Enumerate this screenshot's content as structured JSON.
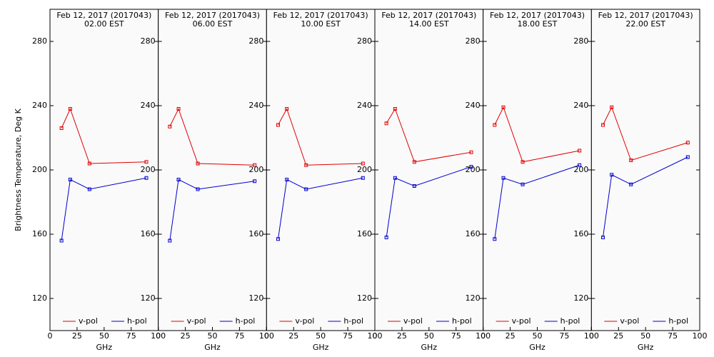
{
  "chart_data": [
    {
      "type": "line",
      "title": "Feb 12, 2017 (2017043)",
      "subtitle": "02.00 EST",
      "xlabel": "GHz",
      "ylabel": "Brightness Temperature, Deg K",
      "x": [
        10.65,
        18.7,
        36.5,
        89.0
      ],
      "xlim": [
        0,
        100
      ],
      "xticks": [
        0,
        25,
        50,
        75,
        100
      ],
      "ylim": [
        100,
        300
      ],
      "yticks": [
        120,
        160,
        200,
        240,
        280
      ],
      "series": [
        {
          "name": "v-pol",
          "color": "#e00000",
          "values": [
            226,
            238,
            204,
            205
          ]
        },
        {
          "name": "h-pol",
          "color": "#0000d0",
          "values": [
            156,
            194,
            188,
            195
          ]
        }
      ]
    },
    {
      "type": "line",
      "title": "Feb 12, 2017 (2017043)",
      "subtitle": "06.00 EST",
      "xlabel": "GHz",
      "x": [
        10.65,
        18.7,
        36.5,
        89.0
      ],
      "xlim": [
        0,
        100
      ],
      "xticks": [
        0,
        25,
        50,
        75,
        100
      ],
      "ylim": [
        100,
        300
      ],
      "yticks": [
        120,
        160,
        200,
        240,
        280
      ],
      "series": [
        {
          "name": "v-pol",
          "color": "#e00000",
          "values": [
            227,
            238,
            204,
            203
          ]
        },
        {
          "name": "h-pol",
          "color": "#0000d0",
          "values": [
            156,
            194,
            188,
            193
          ]
        }
      ]
    },
    {
      "type": "line",
      "title": "Feb 12, 2017 (2017043)",
      "subtitle": "10.00 EST",
      "xlabel": "GHz",
      "x": [
        10.65,
        18.7,
        36.5,
        89.0
      ],
      "xlim": [
        0,
        100
      ],
      "xticks": [
        0,
        25,
        50,
        75,
        100
      ],
      "ylim": [
        100,
        300
      ],
      "yticks": [
        120,
        160,
        200,
        240,
        280
      ],
      "series": [
        {
          "name": "v-pol",
          "color": "#e00000",
          "values": [
            228,
            238,
            203,
            204
          ]
        },
        {
          "name": "h-pol",
          "color": "#0000d0",
          "values": [
            157,
            194,
            188,
            195
          ]
        }
      ]
    },
    {
      "type": "line",
      "title": "Feb 12, 2017 (2017043)",
      "subtitle": "14.00 EST",
      "xlabel": "GHz",
      "x": [
        10.65,
        18.7,
        36.5,
        89.0
      ],
      "xlim": [
        0,
        100
      ],
      "xticks": [
        0,
        25,
        50,
        75,
        100
      ],
      "ylim": [
        100,
        300
      ],
      "yticks": [
        120,
        160,
        200,
        240,
        280
      ],
      "series": [
        {
          "name": "v-pol",
          "color": "#e00000",
          "values": [
            229,
            238,
            205,
            211
          ]
        },
        {
          "name": "h-pol",
          "color": "#0000d0",
          "values": [
            158,
            195,
            190,
            202
          ]
        }
      ]
    },
    {
      "type": "line",
      "title": "Feb 12, 2017 (2017043)",
      "subtitle": "18.00 EST",
      "xlabel": "GHz",
      "x": [
        10.65,
        18.7,
        36.5,
        89.0
      ],
      "xlim": [
        0,
        100
      ],
      "xticks": [
        0,
        25,
        50,
        75,
        100
      ],
      "ylim": [
        100,
        300
      ],
      "yticks": [
        120,
        160,
        200,
        240,
        280
      ],
      "series": [
        {
          "name": "v-pol",
          "color": "#e00000",
          "values": [
            228,
            239,
            205,
            212
          ]
        },
        {
          "name": "h-pol",
          "color": "#0000d0",
          "values": [
            157,
            195,
            191,
            203
          ]
        }
      ]
    },
    {
      "type": "line",
      "title": "Feb 12, 2017 (2017043)",
      "subtitle": "22.00 EST",
      "xlabel": "GHz",
      "x": [
        10.65,
        18.7,
        36.5,
        89.0
      ],
      "xlim": [
        0,
        100
      ],
      "xticks": [
        0,
        25,
        50,
        75,
        100
      ],
      "ylim": [
        100,
        300
      ],
      "yticks": [
        120,
        160,
        200,
        240,
        280
      ],
      "series": [
        {
          "name": "v-pol",
          "color": "#e00000",
          "values": [
            228,
            239,
            206,
            217
          ]
        },
        {
          "name": "h-pol",
          "color": "#0000d0",
          "values": [
            158,
            197,
            191,
            208
          ]
        }
      ]
    }
  ]
}
